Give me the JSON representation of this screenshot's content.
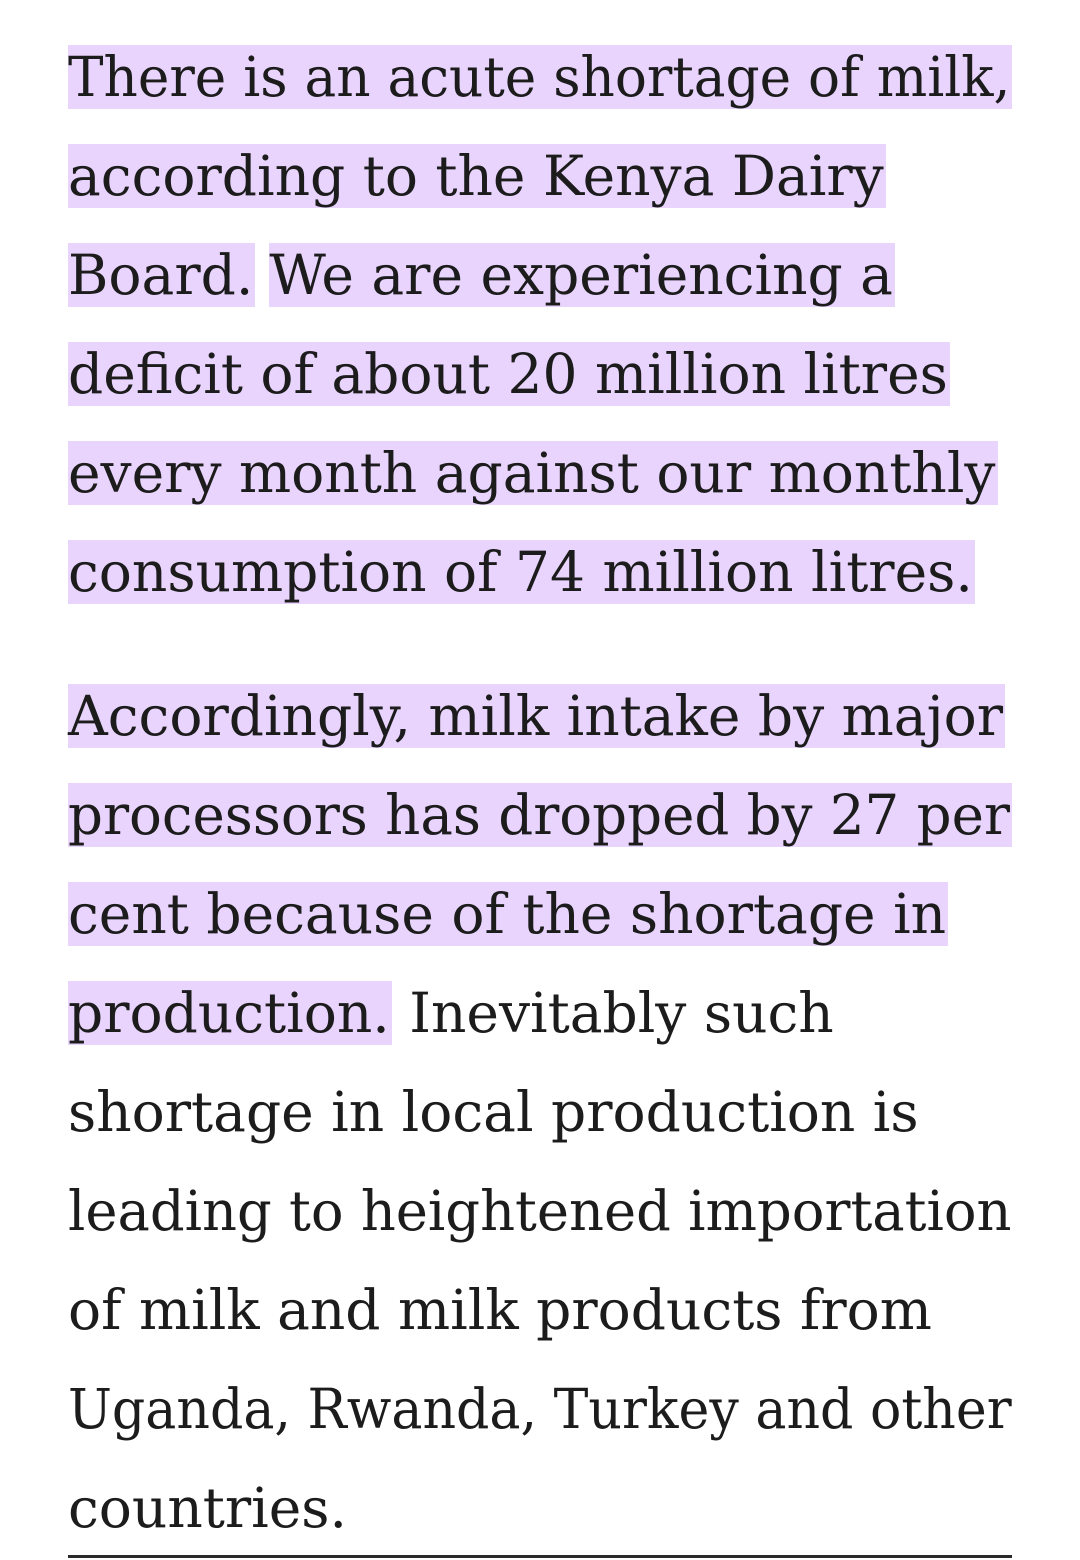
{
  "article": {
    "paragraph_1": {
      "lines": [
        {
          "segments": [
            {
              "text": "There is an acute shortage of milk,",
              "highlighted": true
            }
          ]
        },
        {
          "segments": [
            {
              "text": "according to the Kenya Dairy",
              "highlighted": true
            }
          ]
        },
        {
          "segments": [
            {
              "text": "Board.",
              "highlighted": true
            },
            {
              "text": "We are experiencing a",
              "highlighted": true
            }
          ]
        },
        {
          "segments": [
            {
              "text": "deficit of about 20 million litres",
              "highlighted": true
            }
          ]
        },
        {
          "segments": [
            {
              "text": "every month against our monthly",
              "highlighted": true
            }
          ]
        },
        {
          "segments": [
            {
              "text": "consumption of 74 million litres.",
              "highlighted": true
            }
          ]
        }
      ]
    },
    "paragraph_2": {
      "lines": [
        {
          "segments": [
            {
              "text": "Accordingly, milk intake by major",
              "highlighted": true
            }
          ]
        },
        {
          "segments": [
            {
              "text": "processors has dropped by 27 per",
              "highlighted": true
            }
          ]
        },
        {
          "segments": [
            {
              "text": "cent because of the shortage in",
              "highlighted": true
            }
          ]
        },
        {
          "segments": [
            {
              "text": "production.",
              "highlighted": true
            },
            {
              "text": "Inevitably such",
              "highlighted": false
            }
          ]
        },
        {
          "segments": [
            {
              "text": "shortage in local production is",
              "highlighted": false
            }
          ]
        },
        {
          "segments": [
            {
              "text": "leading to heightened importation",
              "highlighted": false
            }
          ]
        },
        {
          "segments": [
            {
              "text": "of milk and milk products from",
              "highlighted": false
            }
          ]
        },
        {
          "segments": [
            {
              "text": "Uganda, Rwanda, Turkey and other",
              "highlighted": false
            }
          ]
        },
        {
          "segments": [
            {
              "text": "countries.",
              "highlighted": false
            }
          ]
        }
      ]
    }
  },
  "colors": {
    "highlight": "#e9d4fd",
    "text": "#1c1c1c",
    "background": "#ffffff"
  }
}
